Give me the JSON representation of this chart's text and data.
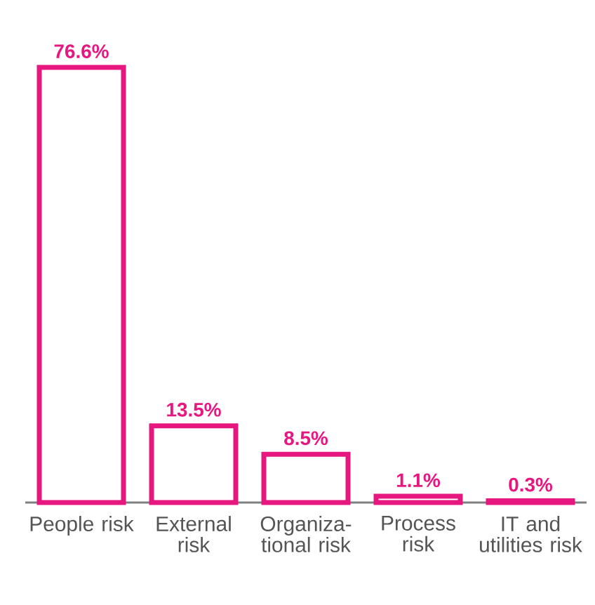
{
  "chart_data": {
    "type": "bar",
    "categories": [
      "People risk",
      "External risk",
      "Organiza-tional risk",
      "Process risk",
      "IT and utilities risk"
    ],
    "values": [
      76.6,
      13.5,
      8.5,
      1.1,
      0.3
    ],
    "value_labels": [
      "76.6%",
      "13.5%",
      "8.5%",
      "1.1%",
      "0.3%"
    ],
    "color": "#e6187f"
  }
}
